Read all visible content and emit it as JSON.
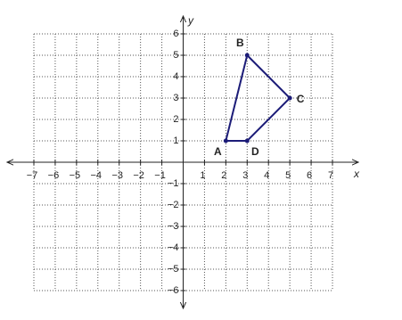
{
  "chart_data": {
    "type": "polygon",
    "x": [
      2,
      3,
      5,
      3
    ],
    "series": [
      {
        "color": "#1c1c78",
        "values": [
          1,
          5,
          3,
          1
        ],
        "point_labels": [
          "A",
          "B",
          "C",
          "D"
        ]
      }
    ],
    "xlabel": "x",
    "ylabel": "y",
    "xlim": [
      -7,
      7
    ],
    "ylim": [
      -6,
      6
    ],
    "xticks": [
      {
        "value": -7,
        "label": "−7"
      },
      {
        "value": -6,
        "label": "−6"
      },
      {
        "value": -5,
        "label": "−5"
      },
      {
        "value": -4,
        "label": "−4"
      },
      {
        "value": -3,
        "label": "−3"
      },
      {
        "value": -2,
        "label": "−2"
      },
      {
        "value": -1,
        "label": "−1"
      },
      1,
      2,
      3,
      4,
      5,
      6,
      7
    ],
    "yticks": [
      {
        "value": -6,
        "label": "−6"
      },
      {
        "value": -5,
        "label": "−5"
      },
      {
        "value": -4,
        "label": "−4"
      },
      {
        "value": -3,
        "label": "−3"
      },
      {
        "value": -2,
        "label": "−2"
      },
      {
        "value": -1,
        "label": "−1"
      },
      1,
      2,
      3,
      4,
      5,
      6
    ],
    "grid": true
  }
}
